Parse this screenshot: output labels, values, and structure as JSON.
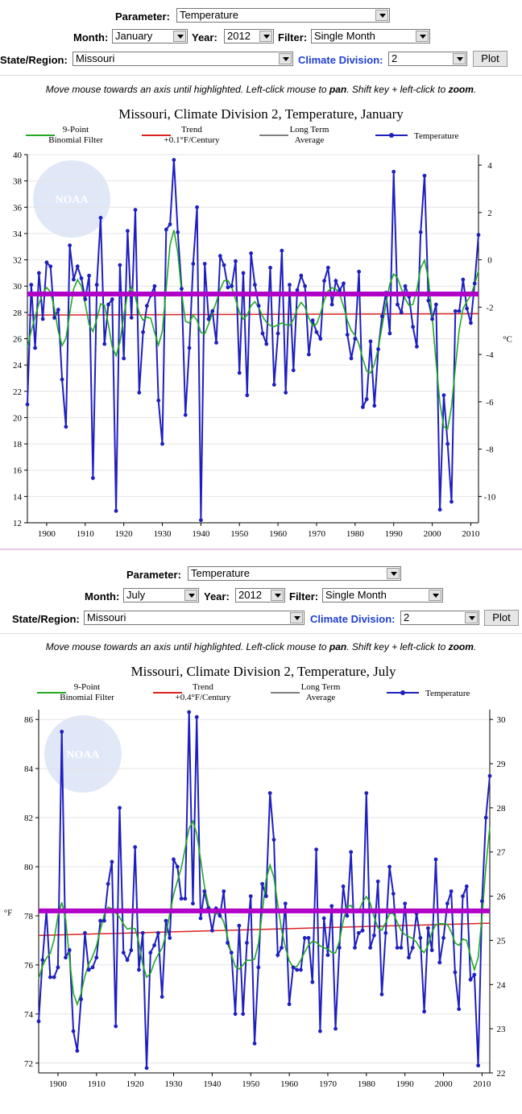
{
  "panels": [
    {
      "form": {
        "parameter_label": "Parameter:",
        "parameter_value": "Temperature",
        "month_label": "Month:",
        "month_value": "January",
        "year_label": "Year:",
        "year_value": "2012",
        "filter_label": "Filter:",
        "filter_value": "Single Month",
        "state_label": "State/Region:",
        "state_value": "Missouri",
        "division_label": "Climate Division:",
        "division_value": "2",
        "plot_button": "Plot"
      },
      "instructions": {
        "a": "Move mouse towards an axis until highlighted. Left-click mouse to ",
        "b": "pan",
        "c": ". Shift key + left-click to ",
        "d": "zoom",
        "e": "."
      },
      "legend": {
        "filter_1": "9-Point",
        "filter_2": "Binomial Filter",
        "trend_1": "Trend",
        "trend_2": "+0.1°F/Century",
        "avg_1": "Long Term",
        "avg_2": "Average",
        "temp": "Temperature"
      }
    },
    {
      "form": {
        "parameter_label": "Parameter:",
        "parameter_value": "Temperature",
        "month_label": "Month:",
        "month_value": "July",
        "year_label": "Year:",
        "year_value": "2012",
        "filter_label": "Filter:",
        "filter_value": "Single Month",
        "state_label": "State/Region:",
        "state_value": "Missouri",
        "division_label": "Climate Division:",
        "division_value": "2",
        "plot_button": "Plot"
      },
      "instructions": {
        "a": "Move mouse towards an axis until highlighted. Left-click mouse to ",
        "b": "pan",
        "c": ". Shift key + left-click to ",
        "d": "zoom",
        "e": "."
      },
      "legend": {
        "filter_1": "9-Point",
        "filter_2": "Binomial Filter",
        "trend_1": "Trend",
        "trend_2": "+0.4°F/Century",
        "avg_1": "Long Term",
        "avg_2": "Average",
        "temp": "Temperature"
      }
    }
  ],
  "colors": {
    "temperature": "#1f1fbf",
    "filter": "#22aa22",
    "trend": "#dd2222",
    "average": "#808080",
    "highlight": "#b000c8",
    "label_blue": "#1f3fd0"
  },
  "watermark": "NOAA",
  "chart_data": [
    {
      "type": "line",
      "title": "Missouri, Climate Division 2, Temperature, January",
      "x_start": 1895,
      "xticks": [
        1900,
        1910,
        1920,
        1930,
        1940,
        1950,
        1960,
        1970,
        1980,
        1990,
        2000,
        2010
      ],
      "xlim": [
        1895,
        2012
      ],
      "ylabel_right": "°C",
      "ylim_f": [
        12,
        40
      ],
      "yticks_f": [
        12,
        14,
        16,
        18,
        20,
        22,
        24,
        26,
        28,
        30,
        32,
        34,
        36,
        38,
        40
      ],
      "yticks_c": [
        -10,
        -8,
        -6,
        -4,
        -2,
        0,
        2,
        4
      ],
      "series": [
        {
          "name": "Temperature",
          "values": [
            21.0,
            30.1,
            25.3,
            31.0,
            27.5,
            31.8,
            31.5,
            27.6,
            28.2,
            22.9,
            19.3,
            33.1,
            30.5,
            31.5,
            30.6,
            29.0,
            30.8,
            15.4,
            30.1,
            35.2,
            25.6,
            28.6,
            29.0,
            12.9,
            31.6,
            24.5,
            34.2,
            27.6,
            35.8,
            21.9,
            26.5,
            28.5,
            29.3,
            30.0,
            21.3,
            18.0,
            34.3,
            34.7,
            39.6,
            34.1,
            29.8,
            20.2,
            25.3,
            31.7,
            36.0,
            12.2,
            31.7,
            27.5,
            28.1,
            25.7,
            32.3,
            31.6,
            29.9,
            30.0,
            31.9,
            23.4,
            31.0,
            21.7,
            32.5,
            30.1,
            28.5,
            26.4,
            25.6,
            31.4,
            22.5,
            26.4,
            32.7,
            21.9,
            30.1,
            23.6,
            29.7,
            30.8,
            30.0,
            24.8,
            27.4,
            26.5,
            26.0,
            30.4,
            31.4,
            28.6,
            30.4,
            29.7,
            30.2,
            26.3,
            24.5,
            26.0,
            31.1,
            20.8,
            21.4,
            25.8,
            20.9,
            25.2,
            27.7,
            29.5,
            26.4,
            38.7,
            28.6,
            28.0,
            30.0,
            29.2,
            26.9,
            25.4,
            34.1,
            38.4,
            28.9,
            27.5,
            28.6,
            13.0,
            21.7,
            18.0,
            13.6,
            28.1,
            28.1,
            30.5,
            28.3,
            27.2,
            30.2,
            33.9
          ]
        },
        {
          "name": "9-Point Binomial Filter"
        },
        {
          "name": "Trend +0.1°F/Century",
          "start": 27.8,
          "end": 27.9
        },
        {
          "name": "Long Term Average",
          "value": 29.4
        }
      ]
    },
    {
      "type": "line",
      "title": "Missouri, Climate Division 2, Temperature, July",
      "x_start": 1895,
      "xticks": [
        1900,
        1910,
        1920,
        1930,
        1940,
        1950,
        1960,
        1970,
        1980,
        1990,
        2000,
        2010
      ],
      "xlim": [
        1895,
        2012
      ],
      "ylabel_left": "°F",
      "ylim_f": [
        71.6,
        86.4
      ],
      "yticks_f": [
        72,
        74,
        76,
        78,
        80,
        82,
        84,
        86
      ],
      "yticks_c": [
        22,
        23,
        24,
        25,
        26,
        27,
        28,
        29,
        30
      ],
      "series": [
        {
          "name": "Temperature",
          "values": [
            73.7,
            76.2,
            78.2,
            75.5,
            75.5,
            75.9,
            85.5,
            76.3,
            76.6,
            73.3,
            72.5,
            74.6,
            77.3,
            75.8,
            75.9,
            76.3,
            77.8,
            77.8,
            79.3,
            80.2,
            73.5,
            82.4,
            76.5,
            76.2,
            76.6,
            80.8,
            75.8,
            77.3,
            71.8,
            76.5,
            76.8,
            77.3,
            74.7,
            77.8,
            77.1,
            80.3,
            80.0,
            78.7,
            78.7,
            86.3,
            78.5,
            86.1,
            77.9,
            79.0,
            78.3,
            77.4,
            78.3,
            78.0,
            79.0,
            76.9,
            76.5,
            74.0,
            77.6,
            74.0,
            76.9,
            78.8,
            72.8,
            75.9,
            79.3,
            78.8,
            83.0,
            81.1,
            76.4,
            76.7,
            78.5,
            74.4,
            75.9,
            75.8,
            75.8,
            77.1,
            77.1,
            75.3,
            80.7,
            73.3,
            77.9,
            76.4,
            78.4,
            73.4,
            76.7,
            79.2,
            78.0,
            80.6,
            76.7,
            77.3,
            77.4,
            83.0,
            76.7,
            77.2,
            79.4,
            74.8,
            77.3,
            80.0,
            78.9,
            76.7,
            76.7,
            78.5,
            76.3,
            76.7,
            78.1,
            77.1,
            74.1,
            77.5,
            76.6,
            80.3,
            76.1,
            77.1,
            78.5,
            79.0,
            75.7,
            74.2,
            78.8,
            79.2,
            75.4,
            75.6,
            71.9,
            78.6,
            82.0,
            83.7
          ]
        },
        {
          "name": "9-Point Binomial Filter"
        },
        {
          "name": "Trend +0.4°F/Century",
          "start": 77.2,
          "end": 77.7
        },
        {
          "name": "Long Term Average",
          "value": 78.2
        }
      ]
    }
  ]
}
